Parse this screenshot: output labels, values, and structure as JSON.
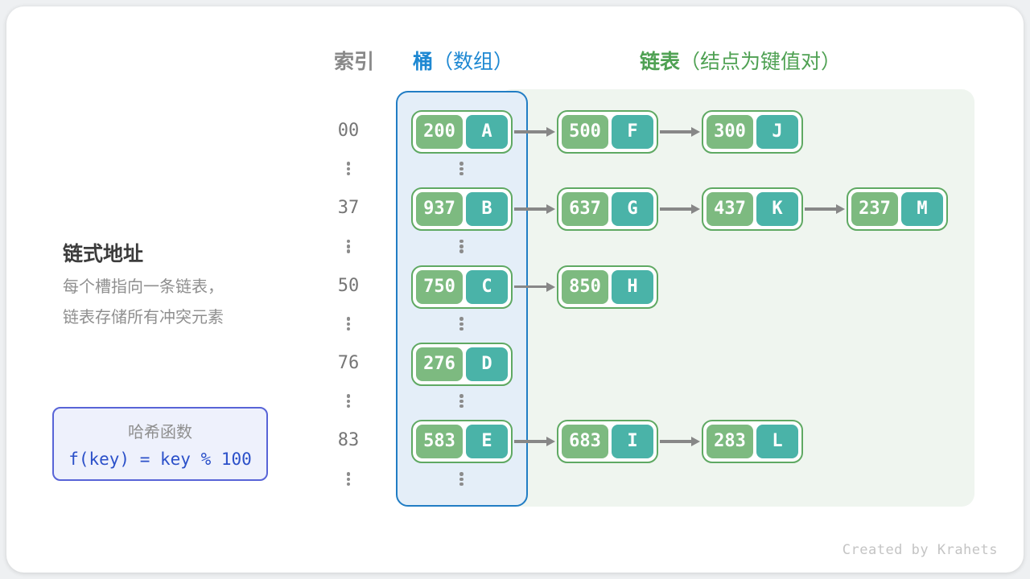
{
  "headers": {
    "index": "索引",
    "bucket_strong": "桶",
    "bucket_rest": "（数组）",
    "list_strong": "链表",
    "list_rest": "（结点为键值对）"
  },
  "left_panel": {
    "title": "链式地址",
    "desc_line1": "每个槽指向一条链表，",
    "desc_line2": "链表存储所有冲突元素",
    "hash_box": {
      "title": "哈希函数",
      "formula": "f(key) = key % 100"
    }
  },
  "diagram": {
    "rows": [
      {
        "index": "00",
        "nodes": [
          {
            "key": "200",
            "value": "A"
          },
          {
            "key": "500",
            "value": "F"
          },
          {
            "key": "300",
            "value": "J"
          }
        ]
      },
      {
        "index": "37",
        "nodes": [
          {
            "key": "937",
            "value": "B"
          },
          {
            "key": "637",
            "value": "G"
          },
          {
            "key": "437",
            "value": "K"
          },
          {
            "key": "237",
            "value": "M"
          }
        ]
      },
      {
        "index": "50",
        "nodes": [
          {
            "key": "750",
            "value": "C"
          },
          {
            "key": "850",
            "value": "H"
          }
        ]
      },
      {
        "index": "76",
        "nodes": [
          {
            "key": "276",
            "value": "D"
          }
        ]
      },
      {
        "index": "83",
        "nodes": [
          {
            "key": "583",
            "value": "E"
          },
          {
            "key": "683",
            "value": "I"
          },
          {
            "key": "283",
            "value": "L"
          }
        ]
      }
    ],
    "ellipsis_after_each_row": true
  },
  "footer": {
    "credit": "Created by Krahets"
  },
  "colors": {
    "page_bg": "#eef0f2",
    "header_index": "#898989",
    "header_bucket": "#1e88d2",
    "header_list": "#4fa153",
    "bucket_bg": "#e4eef8",
    "bucket_border": "#217dc4",
    "list_bg": "#eff5ef",
    "node_border": "#5fa963",
    "node_key_bg": "#7dba80",
    "node_value_bg": "#4ab3a8",
    "node_text": "#ffffff",
    "arrow": "#878787",
    "index_text": "#767676",
    "dots": "#8c8c8c",
    "title_text": "#3c3c3c",
    "desc_text": "#8f8f8f",
    "hash_border": "#5864d7",
    "hash_bg": "#eef1fc",
    "hash_title": "#8f8f8f",
    "hash_formula": "#2b50c9",
    "credit": "#c4c4c4"
  }
}
